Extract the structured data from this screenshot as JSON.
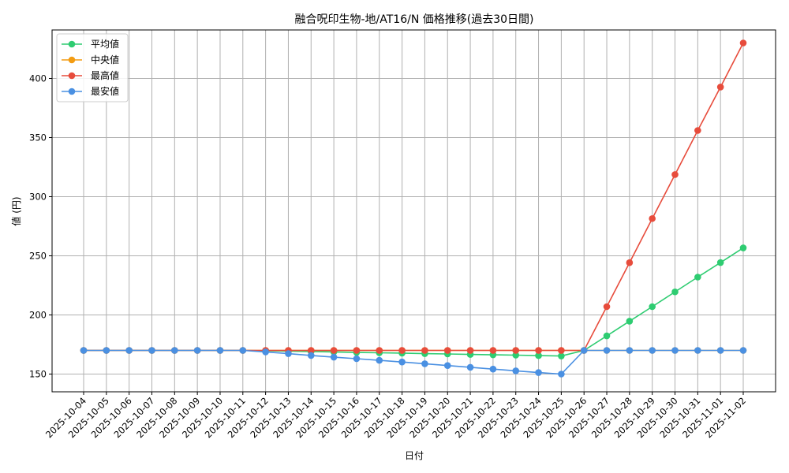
{
  "chart_data": {
    "type": "line",
    "title": "融合呪印生物-地/AT16/N 価格推移(過去30日間)",
    "xlabel": "日付",
    "ylabel": "値 (円)",
    "ylim": [
      135,
      441
    ],
    "yticks": [
      150,
      200,
      250,
      300,
      350,
      400
    ],
    "grid": true,
    "legend_position": "top-left",
    "x": [
      "2025-10-04",
      "2025-10-05",
      "2025-10-06",
      "2025-10-07",
      "2025-10-08",
      "2025-10-09",
      "2025-10-10",
      "2025-10-11",
      "2025-10-12",
      "2025-10-13",
      "2025-10-14",
      "2025-10-15",
      "2025-10-16",
      "2025-10-17",
      "2025-10-18",
      "2025-10-19",
      "2025-10-20",
      "2025-10-21",
      "2025-10-22",
      "2025-10-23",
      "2025-10-24",
      "2025-10-25",
      "2025-10-26",
      "2025-10-27",
      "2025-10-28",
      "2025-10-29",
      "2025-10-30",
      "2025-10-31",
      "2025-11-01",
      "2025-11-02"
    ],
    "series": [
      {
        "name": "平均値",
        "color": "#2ecc71",
        "values": [
          170,
          170,
          170,
          170,
          170,
          170,
          170,
          170,
          169.7,
          169.4,
          169.0,
          168.7,
          168.3,
          168.0,
          167.7,
          167.3,
          167.0,
          166.6,
          166.3,
          166.0,
          165.6,
          165.3,
          170,
          182.3,
          194.7,
          207.0,
          219.5,
          232.0,
          244.3,
          256.7
        ]
      },
      {
        "name": "中央値",
        "color": "#f39c12",
        "values": [
          170,
          170,
          170,
          170,
          170,
          170,
          170,
          170,
          170,
          170,
          170,
          170,
          170,
          170,
          170,
          170,
          170,
          170,
          170,
          170,
          170,
          170,
          170,
          170,
          170,
          170,
          170,
          170,
          170,
          170
        ]
      },
      {
        "name": "最高値",
        "color": "#e74c3c",
        "values": [
          170,
          170,
          170,
          170,
          170,
          170,
          170,
          170,
          170,
          170,
          170,
          170,
          170,
          170,
          170,
          170,
          170,
          170,
          170,
          170,
          170,
          170,
          170,
          207.0,
          244.2,
          281.5,
          318.7,
          356.0,
          392.7,
          430.0
        ]
      },
      {
        "name": "最安値",
        "color": "#4a90e2",
        "values": [
          170,
          170,
          170,
          170,
          170,
          170,
          170,
          170,
          168.7,
          167.3,
          165.7,
          164.3,
          163.0,
          161.6,
          160.2,
          158.7,
          157.2,
          155.7,
          154.2,
          152.7,
          151.3,
          150,
          170,
          170,
          170,
          170,
          170,
          170,
          170,
          170
        ]
      }
    ]
  }
}
